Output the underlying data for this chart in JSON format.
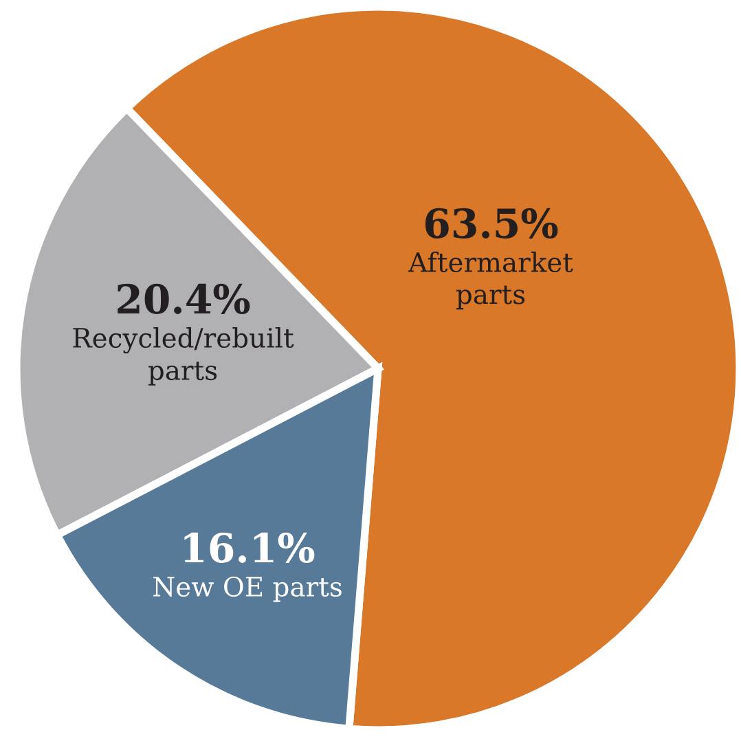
{
  "chart_data": {
    "type": "pie",
    "categories": [
      "Aftermarket\nparts",
      "Recycled/rebuilt\nparts",
      "New OE parts"
    ],
    "values": [
      63.5,
      20.4,
      16.1
    ],
    "colors": [
      "#d97828",
      "#b1b1b3",
      "#587a99"
    ],
    "value_labels": [
      "63.5%",
      "20.4%",
      "16.1%"
    ]
  }
}
